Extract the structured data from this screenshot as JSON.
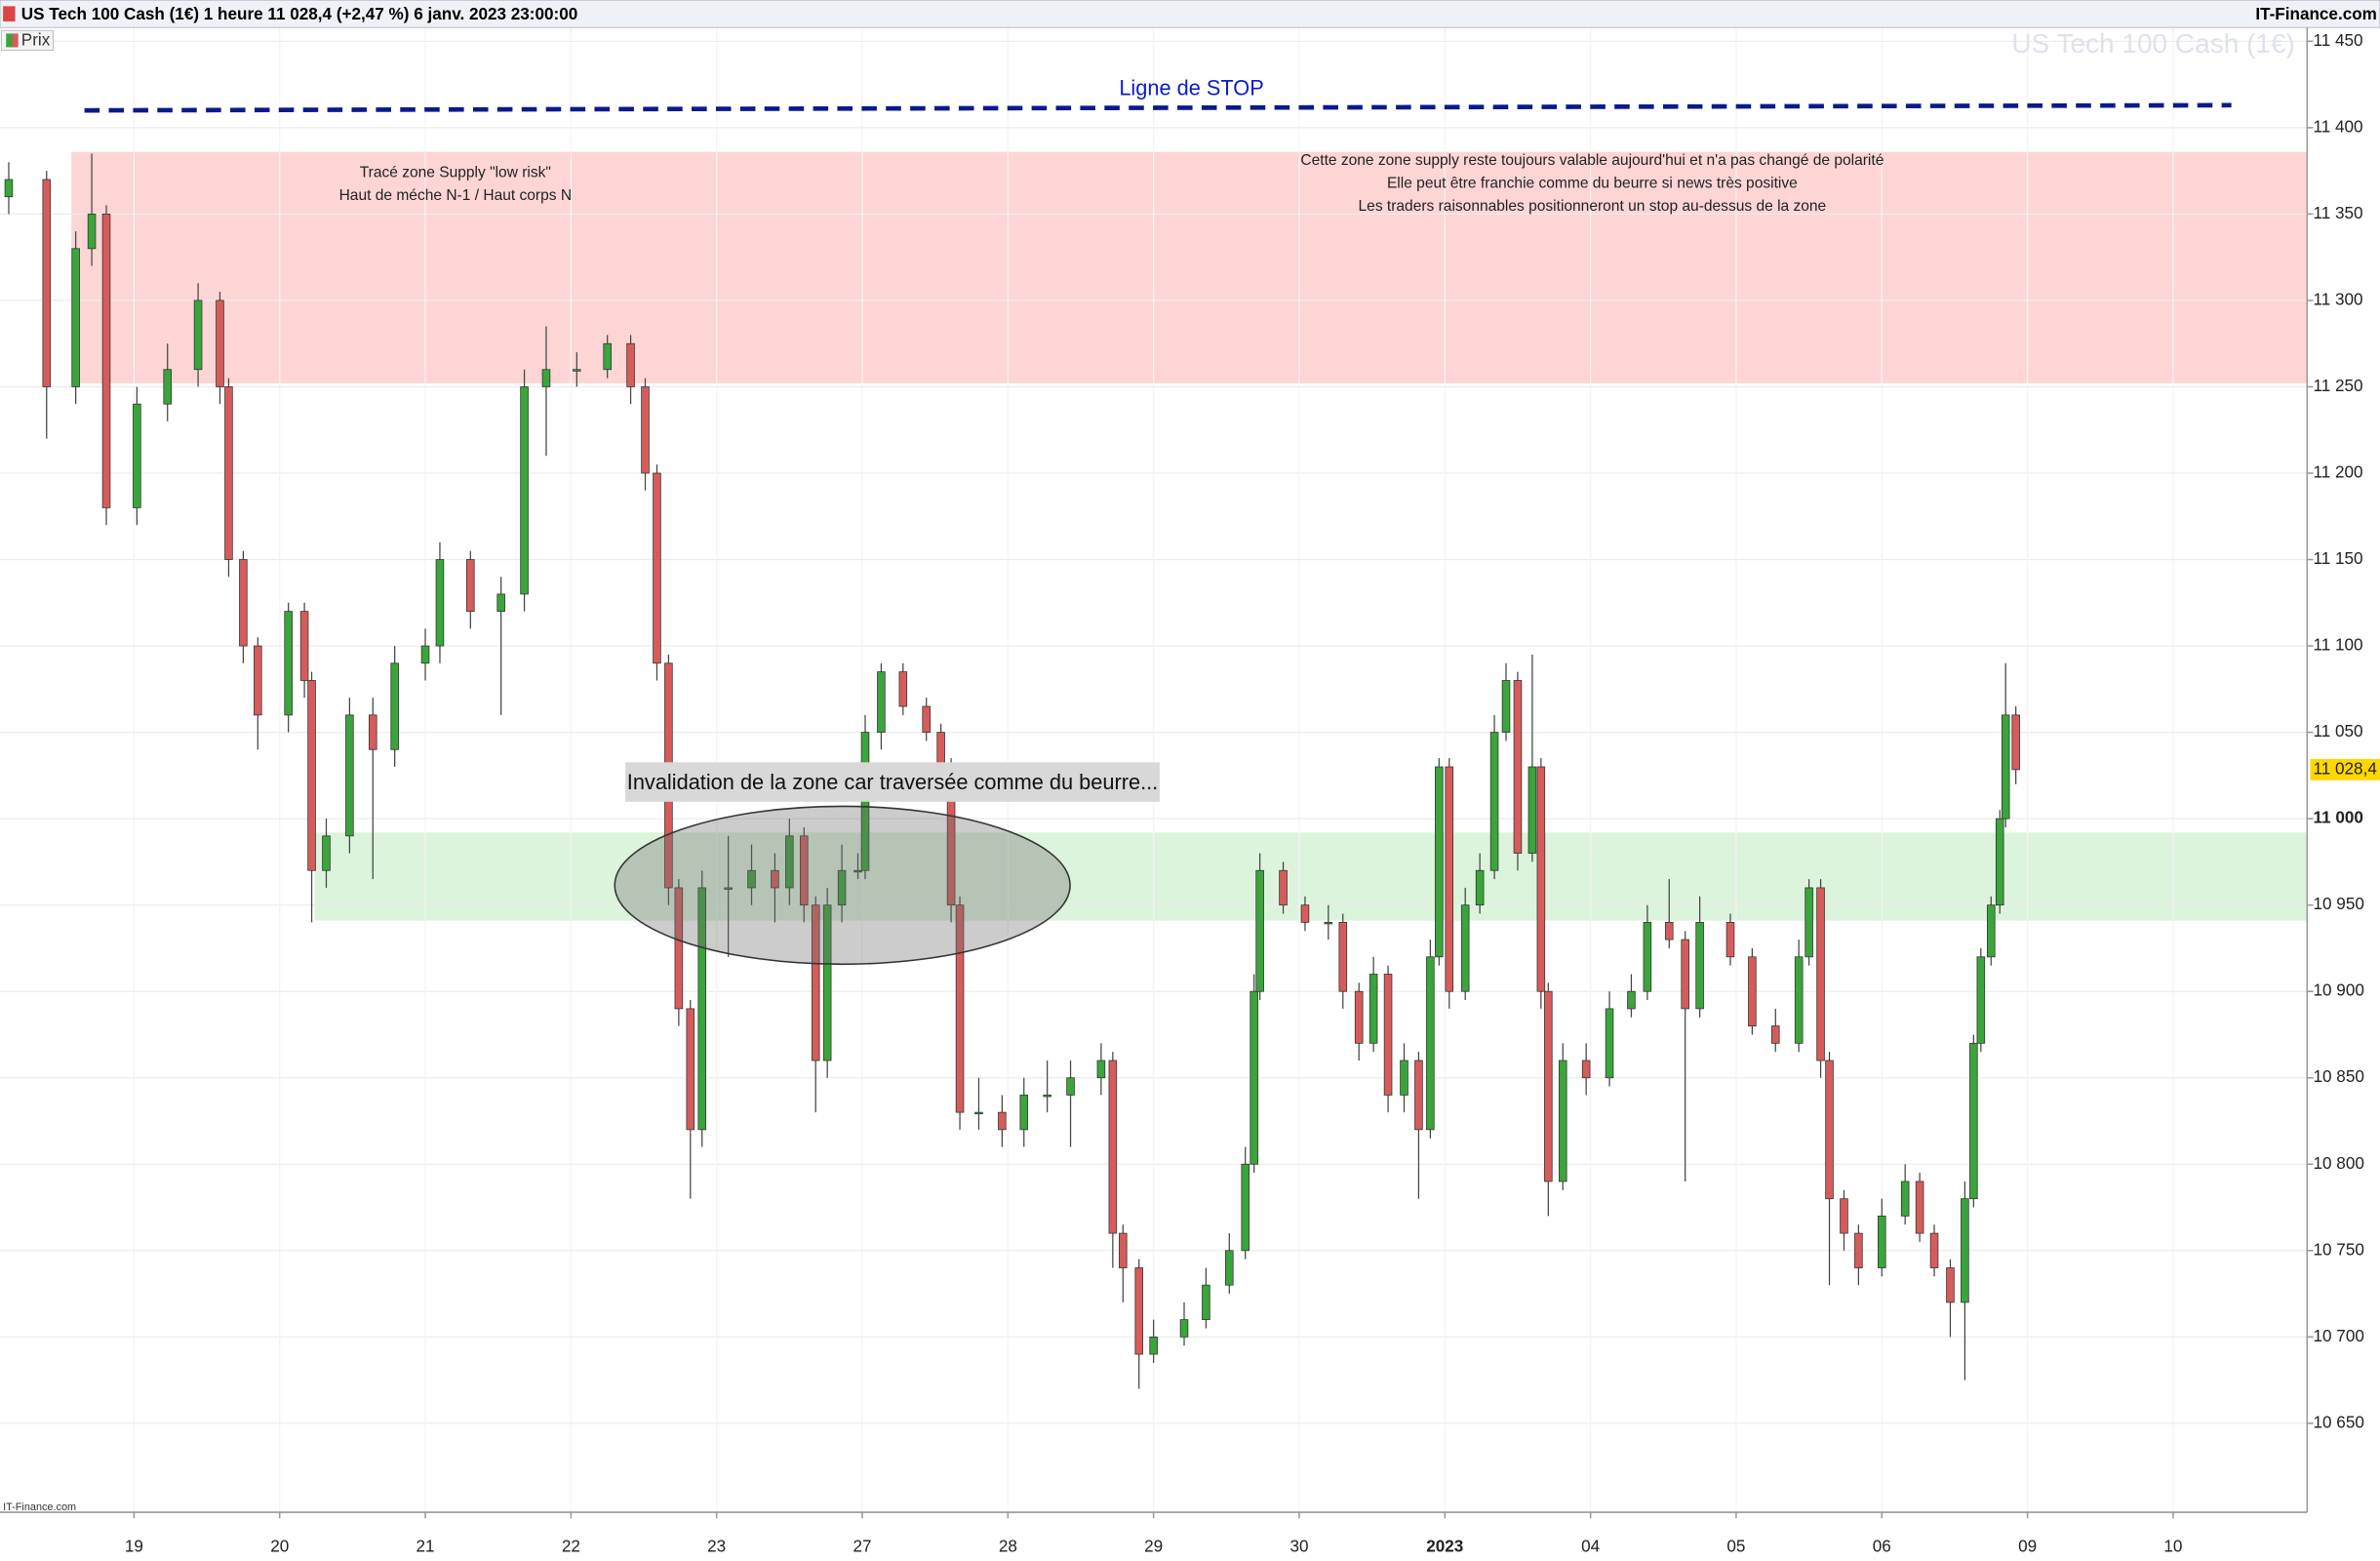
{
  "chart_data": {
    "type": "candlestick",
    "title": "US Tech 100 Cash (1€) 1 heure 11 028,4 (+2,47 %) 6 janv. 2023 23:00:00",
    "source": "IT-Finance.com",
    "source_small": "IT-Finance.com",
    "legend_label": "Prix",
    "watermark": "US Tech 100 Cash (1€)",
    "last_price_label": "11 028,4",
    "up_color": "#3aa53a",
    "down_color": "#d65c5c",
    "grid": true,
    "xlim": [
      0.08,
      15.92
    ],
    "ylim": [
      10598.5,
      11458
    ],
    "xticks": [
      {
        "value": 1,
        "label": "19"
      },
      {
        "value": 2,
        "label": "20"
      },
      {
        "value": 3,
        "label": "21"
      },
      {
        "value": 4,
        "label": "22"
      },
      {
        "value": 5,
        "label": "23"
      },
      {
        "value": 6,
        "label": "27"
      },
      {
        "value": 7,
        "label": "28"
      },
      {
        "value": 8,
        "label": "29"
      },
      {
        "value": 9,
        "label": "30"
      },
      {
        "value": 10,
        "label": "2023",
        "bold": true
      },
      {
        "value": 11,
        "label": "04"
      },
      {
        "value": 12,
        "label": "05"
      },
      {
        "value": 13,
        "label": "06"
      },
      {
        "value": 14,
        "label": "09"
      },
      {
        "value": 15,
        "label": "10"
      }
    ],
    "yticks": [
      {
        "value": 10650,
        "label": "10 650"
      },
      {
        "value": 10700,
        "label": "10 700"
      },
      {
        "value": 10750,
        "label": "10 750"
      },
      {
        "value": 10800,
        "label": "10 800"
      },
      {
        "value": 10850,
        "label": "10 850"
      },
      {
        "value": 10900,
        "label": "10 900"
      },
      {
        "value": 10950,
        "label": "10 950"
      },
      {
        "value": 11000,
        "label": "11 000",
        "bold": true
      },
      {
        "value": 11050,
        "label": "11 050"
      },
      {
        "value": 11100,
        "label": "11 100"
      },
      {
        "value": 11150,
        "label": "11 150"
      },
      {
        "value": 11200,
        "label": "11 200"
      },
      {
        "value": 11250,
        "label": "11 250"
      },
      {
        "value": 11300,
        "label": "11 300"
      },
      {
        "value": 11350,
        "label": "11 350"
      },
      {
        "value": 11400,
        "label": "11 400"
      },
      {
        "value": 11450,
        "label": "11 450"
      }
    ],
    "zones": [
      {
        "name": "supply",
        "color": "#fdd5d5",
        "x0": 0.57,
        "low": 11252,
        "high": 11386
      },
      {
        "name": "demand",
        "color": "#dcf3dc",
        "x0": 2.24,
        "low": 10941,
        "high": 10992
      }
    ],
    "stop_line": {
      "label": "Ligne de STOP",
      "color": "#0a1a8c",
      "x": [
        0.66,
        15.4
      ],
      "y": [
        11410,
        11413
      ]
    },
    "annotations": {
      "zone_note_left": [
        "Tracé zone Supply \"low risk\"",
        "Haut de méche N-1 / Haut corps N"
      ],
      "zone_note_right": [
        "Cette zone zone supply reste toujours valable aujourd'hui et n'a pas changé de polarité",
        "Elle peut être franchie comme du beurre si news très positive",
        "Les traders raisonnables positionneront un stop au-dessus de la zone"
      ],
      "invalidation": "Invalidation de la zone car traversée comme du beurre..."
    },
    "candles": [
      {
        "x": 0.14,
        "open": 11360,
        "high": 11380,
        "low": 11350,
        "close": 11370
      },
      {
        "x": 0.4,
        "open": 11370,
        "high": 11375,
        "low": 11220,
        "close": 11250
      },
      {
        "x": 0.6,
        "open": 11250,
        "high": 11340,
        "low": 11240,
        "close": 11330
      },
      {
        "x": 0.71,
        "open": 11330,
        "high": 11385,
        "low": 11320,
        "close": 11350
      },
      {
        "x": 0.81,
        "open": 11350,
        "high": 11355,
        "low": 11170,
        "close": 11180
      },
      {
        "x": 1.02,
        "open": 11180,
        "high": 11250,
        "low": 11170,
        "close": 11240
      },
      {
        "x": 1.23,
        "open": 11240,
        "high": 11275,
        "low": 11230,
        "close": 11260
      },
      {
        "x": 1.44,
        "open": 11260,
        "high": 11310,
        "low": 11250,
        "close": 11300
      },
      {
        "x": 1.59,
        "open": 11300,
        "high": 11305,
        "low": 11240,
        "close": 11250
      },
      {
        "x": 1.65,
        "open": 11250,
        "high": 11255,
        "low": 11140,
        "close": 11150
      },
      {
        "x": 1.75,
        "open": 11150,
        "high": 11155,
        "low": 11090,
        "close": 11100
      },
      {
        "x": 1.85,
        "open": 11100,
        "high": 11105,
        "low": 11040,
        "close": 11060
      },
      {
        "x": 2.06,
        "open": 11060,
        "high": 11125,
        "low": 11050,
        "close": 11120
      },
      {
        "x": 2.17,
        "open": 11120,
        "high": 11125,
        "low": 11070,
        "close": 11080
      },
      {
        "x": 2.22,
        "open": 11080,
        "high": 11085,
        "low": 10940,
        "close": 10970
      },
      {
        "x": 2.32,
        "open": 10970,
        "high": 11000,
        "low": 10960,
        "close": 10990
      },
      {
        "x": 2.48,
        "open": 10990,
        "high": 11070,
        "low": 10980,
        "close": 11060
      },
      {
        "x": 2.64,
        "open": 11060,
        "high": 11070,
        "low": 10965,
        "close": 11040
      },
      {
        "x": 2.79,
        "open": 11040,
        "high": 11100,
        "low": 11030,
        "close": 11090
      },
      {
        "x": 3.0,
        "open": 11090,
        "high": 11110,
        "low": 11080,
        "close": 11100
      },
      {
        "x": 3.1,
        "open": 11100,
        "high": 11160,
        "low": 11090,
        "close": 11150
      },
      {
        "x": 3.31,
        "open": 11150,
        "high": 11155,
        "low": 11110,
        "close": 11120
      },
      {
        "x": 3.52,
        "open": 11120,
        "high": 11140,
        "low": 11060,
        "close": 11130
      },
      {
        "x": 3.68,
        "open": 11130,
        "high": 11260,
        "low": 11120,
        "close": 11250
      },
      {
        "x": 3.83,
        "open": 11250,
        "high": 11285,
        "low": 11210,
        "close": 11260
      },
      {
        "x": 4.04,
        "open": 11260,
        "high": 11270,
        "low": 11250,
        "close": 11260
      },
      {
        "x": 4.25,
        "open": 11260,
        "high": 11280,
        "low": 11255,
        "close": 11275
      },
      {
        "x": 4.41,
        "open": 11275,
        "high": 11280,
        "low": 11240,
        "close": 11250
      },
      {
        "x": 4.51,
        "open": 11250,
        "high": 11255,
        "low": 11190,
        "close": 11200
      },
      {
        "x": 4.59,
        "open": 11200,
        "high": 11205,
        "low": 11080,
        "close": 11090
      },
      {
        "x": 4.67,
        "open": 11090,
        "high": 11095,
        "low": 10950,
        "close": 10960
      },
      {
        "x": 4.74,
        "open": 10960,
        "high": 10965,
        "low": 10880,
        "close": 10890
      },
      {
        "x": 4.82,
        "open": 10890,
        "high": 10895,
        "low": 10780,
        "close": 10820
      },
      {
        "x": 4.9,
        "open": 10820,
        "high": 10970,
        "low": 10810,
        "close": 10960
      },
      {
        "x": 5.08,
        "open": 10960,
        "high": 10990,
        "low": 10920,
        "close": 10960
      },
      {
        "x": 5.24,
        "open": 10960,
        "high": 10985,
        "low": 10950,
        "close": 10970
      },
      {
        "x": 5.4,
        "open": 10970,
        "high": 10980,
        "low": 10940,
        "close": 10960
      },
      {
        "x": 5.5,
        "open": 10960,
        "high": 11000,
        "low": 10950,
        "close": 10990
      },
      {
        "x": 5.6,
        "open": 10990,
        "high": 10995,
        "low": 10940,
        "close": 10950
      },
      {
        "x": 5.68,
        "open": 10950,
        "high": 10955,
        "low": 10830,
        "close": 10860
      },
      {
        "x": 5.76,
        "open": 10860,
        "high": 10960,
        "low": 10850,
        "close": 10950
      },
      {
        "x": 5.86,
        "open": 10950,
        "high": 10985,
        "low": 10940,
        "close": 10970
      },
      {
        "x": 5.97,
        "open": 10970,
        "high": 10980,
        "low": 10965,
        "close": 10970
      },
      {
        "x": 6.02,
        "open": 10970,
        "high": 11060,
        "low": 10965,
        "close": 11050
      },
      {
        "x": 6.13,
        "open": 11050,
        "high": 11090,
        "low": 11040,
        "close": 11085
      },
      {
        "x": 6.28,
        "open": 11085,
        "high": 11090,
        "low": 11060,
        "close": 11065
      },
      {
        "x": 6.44,
        "open": 11065,
        "high": 11070,
        "low": 11045,
        "close": 11050
      },
      {
        "x": 6.54,
        "open": 11050,
        "high": 11055,
        "low": 11025,
        "close": 11030
      },
      {
        "x": 6.61,
        "open": 11030,
        "high": 11035,
        "low": 10940,
        "close": 10950
      },
      {
        "x": 6.67,
        "open": 10950,
        "high": 10955,
        "low": 10820,
        "close": 10830
      },
      {
        "x": 6.8,
        "open": 10830,
        "high": 10850,
        "low": 10820,
        "close": 10830
      },
      {
        "x": 6.96,
        "open": 10830,
        "high": 10840,
        "low": 10810,
        "close": 10820
      },
      {
        "x": 7.11,
        "open": 10820,
        "high": 10850,
        "low": 10810,
        "close": 10840
      },
      {
        "x": 7.27,
        "open": 10840,
        "high": 10860,
        "low": 10830,
        "close": 10840
      },
      {
        "x": 7.43,
        "open": 10840,
        "high": 10860,
        "low": 10810,
        "close": 10850
      },
      {
        "x": 7.64,
        "open": 10850,
        "high": 10870,
        "low": 10840,
        "close": 10860
      },
      {
        "x": 7.72,
        "open": 10860,
        "high": 10865,
        "low": 10740,
        "close": 10760
      },
      {
        "x": 7.79,
        "open": 10760,
        "high": 10765,
        "low": 10720,
        "close": 10740
      },
      {
        "x": 7.9,
        "open": 10740,
        "high": 10745,
        "low": 10670,
        "close": 10690
      },
      {
        "x": 8.0,
        "open": 10690,
        "high": 10710,
        "low": 10685,
        "close": 10700
      },
      {
        "x": 8.21,
        "open": 10700,
        "high": 10720,
        "low": 10695,
        "close": 10710
      },
      {
        "x": 8.36,
        "open": 10710,
        "high": 10740,
        "low": 10705,
        "close": 10730
      },
      {
        "x": 8.52,
        "open": 10730,
        "high": 10760,
        "low": 10725,
        "close": 10750
      },
      {
        "x": 8.63,
        "open": 10750,
        "high": 10810,
        "low": 10745,
        "close": 10800
      },
      {
        "x": 8.69,
        "open": 10800,
        "high": 10910,
        "low": 10795,
        "close": 10900
      },
      {
        "x": 8.73,
        "open": 10900,
        "high": 10980,
        "low": 10895,
        "close": 10970
      },
      {
        "x": 8.89,
        "open": 10970,
        "high": 10975,
        "low": 10945,
        "close": 10950
      },
      {
        "x": 9.04,
        "open": 10950,
        "high": 10955,
        "low": 10935,
        "close": 10940
      },
      {
        "x": 9.2,
        "open": 10940,
        "high": 10950,
        "low": 10930,
        "close": 10940
      },
      {
        "x": 9.3,
        "open": 10940,
        "high": 10945,
        "low": 10890,
        "close": 10900
      },
      {
        "x": 9.41,
        "open": 10900,
        "high": 10905,
        "low": 10860,
        "close": 10870
      },
      {
        "x": 9.51,
        "open": 10870,
        "high": 10920,
        "low": 10865,
        "close": 10910
      },
      {
        "x": 9.61,
        "open": 10910,
        "high": 10915,
        "low": 10830,
        "close": 10840
      },
      {
        "x": 9.72,
        "open": 10840,
        "high": 10870,
        "low": 10830,
        "close": 10860
      },
      {
        "x": 9.82,
        "open": 10860,
        "high": 10865,
        "low": 10780,
        "close": 10820
      },
      {
        "x": 9.9,
        "open": 10820,
        "high": 10930,
        "low": 10815,
        "close": 10920
      },
      {
        "x": 9.96,
        "open": 10920,
        "high": 11035,
        "low": 10915,
        "close": 11030
      },
      {
        "x": 10.03,
        "open": 11030,
        "high": 11035,
        "low": 10890,
        "close": 10900
      },
      {
        "x": 10.14,
        "open": 10900,
        "high": 10960,
        "low": 10895,
        "close": 10950
      },
      {
        "x": 10.24,
        "open": 10950,
        "high": 10980,
        "low": 10945,
        "close": 10970
      },
      {
        "x": 10.34,
        "open": 10970,
        "high": 11060,
        "low": 10965,
        "close": 11050
      },
      {
        "x": 10.42,
        "open": 11050,
        "high": 11090,
        "low": 11045,
        "close": 11080
      },
      {
        "x": 10.5,
        "open": 11080,
        "high": 11085,
        "low": 10970,
        "close": 10980
      },
      {
        "x": 10.6,
        "open": 10980,
        "high": 11095,
        "low": 10975,
        "close": 11030
      },
      {
        "x": 10.66,
        "open": 11030,
        "high": 11035,
        "low": 10890,
        "close": 10900
      },
      {
        "x": 10.71,
        "open": 10900,
        "high": 10905,
        "low": 10770,
        "close": 10790
      },
      {
        "x": 10.81,
        "open": 10790,
        "high": 10870,
        "low": 10785,
        "close": 10860
      },
      {
        "x": 10.97,
        "open": 10860,
        "high": 10870,
        "low": 10840,
        "close": 10850
      },
      {
        "x": 11.13,
        "open": 10850,
        "high": 10900,
        "low": 10845,
        "close": 10890
      },
      {
        "x": 11.28,
        "open": 10890,
        "high": 10910,
        "low": 10885,
        "close": 10900
      },
      {
        "x": 11.39,
        "open": 10900,
        "high": 10950,
        "low": 10895,
        "close": 10940
      },
      {
        "x": 11.54,
        "open": 10940,
        "high": 10965,
        "low": 10925,
        "close": 10930
      },
      {
        "x": 11.65,
        "open": 10930,
        "high": 10935,
        "low": 10790,
        "close": 10890
      },
      {
        "x": 11.75,
        "open": 10890,
        "high": 10955,
        "low": 10885,
        "close": 10940
      },
      {
        "x": 11.96,
        "open": 10940,
        "high": 10945,
        "low": 10915,
        "close": 10920
      },
      {
        "x": 12.11,
        "open": 10920,
        "high": 10925,
        "low": 10875,
        "close": 10880
      },
      {
        "x": 12.27,
        "open": 10880,
        "high": 10890,
        "low": 10865,
        "close": 10870
      },
      {
        "x": 12.43,
        "open": 10870,
        "high": 10930,
        "low": 10865,
        "close": 10920
      },
      {
        "x": 12.5,
        "open": 10920,
        "high": 10965,
        "low": 10915,
        "close": 10960
      },
      {
        "x": 12.58,
        "open": 10960,
        "high": 10965,
        "low": 10850,
        "close": 10860
      },
      {
        "x": 12.64,
        "open": 10860,
        "high": 10865,
        "low": 10730,
        "close": 10780
      },
      {
        "x": 12.74,
        "open": 10780,
        "high": 10785,
        "low": 10750,
        "close": 10760
      },
      {
        "x": 12.84,
        "open": 10760,
        "high": 10765,
        "low": 10730,
        "close": 10740
      },
      {
        "x": 13.0,
        "open": 10740,
        "high": 10780,
        "low": 10735,
        "close": 10770
      },
      {
        "x": 13.16,
        "open": 10770,
        "high": 10800,
        "low": 10765,
        "close": 10790
      },
      {
        "x": 13.26,
        "open": 10790,
        "high": 10795,
        "low": 10755,
        "close": 10760
      },
      {
        "x": 13.36,
        "open": 10760,
        "high": 10765,
        "low": 10735,
        "close": 10740
      },
      {
        "x": 13.47,
        "open": 10740,
        "high": 10745,
        "low": 10700,
        "close": 10720
      },
      {
        "x": 13.57,
        "open": 10720,
        "high": 10790,
        "low": 10675,
        "close": 10780
      },
      {
        "x": 13.63,
        "open": 10780,
        "high": 10875,
        "low": 10775,
        "close": 10870
      },
      {
        "x": 13.68,
        "open": 10870,
        "high": 10925,
        "low": 10865,
        "close": 10920
      },
      {
        "x": 13.75,
        "open": 10920,
        "high": 10955,
        "low": 10915,
        "close": 10950
      },
      {
        "x": 13.81,
        "open": 10950,
        "high": 11005,
        "low": 10945,
        "close": 11000
      },
      {
        "x": 13.85,
        "open": 11000,
        "high": 11090,
        "low": 10995,
        "close": 11060
      },
      {
        "x": 13.92,
        "open": 11060,
        "high": 11065,
        "low": 11020,
        "close": 11028.4
      }
    ]
  }
}
